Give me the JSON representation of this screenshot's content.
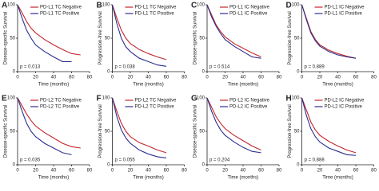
{
  "chart_data": [
    {
      "type": "line",
      "label": "A",
      "ylabel": "Disease-specific Survival",
      "xlabel": "Time (months)",
      "annotation": "p = 0.013",
      "x": [
        0,
        5,
        10,
        15,
        20,
        30,
        40,
        50,
        60,
        70
      ],
      "xlim": [
        0,
        80
      ],
      "xticks": [
        0,
        20,
        40,
        60,
        80
      ],
      "ylim": [
        0,
        100
      ],
      "yticks": [
        0,
        50,
        100
      ],
      "series": [
        {
          "name": "PD-L1 TC Negative",
          "color": "#c0262d",
          "values": [
            100,
            88,
            75,
            65,
            58,
            48,
            40,
            33,
            27,
            25
          ]
        },
        {
          "name": "PD-L1 TC Positive",
          "color": "#2b2f8f",
          "values": [
            100,
            80,
            62,
            50,
            40,
            30,
            22,
            15,
            15,
            null
          ]
        }
      ]
    },
    {
      "type": "line",
      "label": "B",
      "ylabel": "Progression-free Survival",
      "xlabel": "Time (months)",
      "annotation": "p = 0.038",
      "x": [
        0,
        5,
        10,
        15,
        20,
        30,
        40,
        50,
        60,
        70
      ],
      "xlim": [
        0,
        80
      ],
      "xticks": [
        0,
        20,
        40,
        60,
        80
      ],
      "ylim": [
        0,
        100
      ],
      "yticks": [
        0,
        50,
        100
      ],
      "series": [
        {
          "name": "PD-L1 TC Negative",
          "color": "#c0262d",
          "values": [
            100,
            80,
            62,
            50,
            42,
            33,
            27,
            22,
            18,
            null
          ]
        },
        {
          "name": "PD-L1 TC Positive",
          "color": "#2b2f8f",
          "values": [
            100,
            72,
            50,
            37,
            30,
            20,
            15,
            10,
            8,
            null
          ]
        }
      ]
    },
    {
      "type": "line",
      "label": "C",
      "ylabel": "Disease-specific Survival",
      "xlabel": "Time (months)",
      "annotation": "p = 0.514",
      "x": [
        0,
        5,
        10,
        15,
        20,
        30,
        40,
        50,
        60,
        70
      ],
      "xlim": [
        0,
        80
      ],
      "xticks": [
        0,
        20,
        40,
        60,
        80
      ],
      "ylim": [
        0,
        100
      ],
      "yticks": [
        0,
        50,
        100
      ],
      "series": [
        {
          "name": "PD-L1 IC Negative",
          "color": "#c0262d",
          "values": [
            100,
            85,
            70,
            60,
            52,
            42,
            35,
            28,
            22,
            null
          ]
        },
        {
          "name": "PD-L1 IC Positive",
          "color": "#2b2f8f",
          "values": [
            100,
            82,
            68,
            57,
            48,
            38,
            30,
            22,
            20,
            null
          ]
        }
      ]
    },
    {
      "type": "line",
      "label": "D",
      "ylabel": "Progression-free Survival",
      "xlabel": "Time (months)",
      "annotation": "p = 0.889",
      "x": [
        0,
        5,
        10,
        15,
        20,
        30,
        40,
        50,
        60,
        70
      ],
      "xlim": [
        0,
        80
      ],
      "xticks": [
        0,
        20,
        40,
        60,
        80
      ],
      "ylim": [
        0,
        100
      ],
      "yticks": [
        0,
        50,
        100
      ],
      "series": [
        {
          "name": "PD-L1 IC Negative",
          "color": "#c0262d",
          "values": [
            100,
            80,
            60,
            48,
            40,
            32,
            27,
            23,
            20,
            null
          ]
        },
        {
          "name": "PD-L1 IC Positive",
          "color": "#2b2f8f",
          "values": [
            100,
            78,
            58,
            46,
            38,
            30,
            25,
            22,
            20,
            null
          ]
        }
      ]
    },
    {
      "type": "line",
      "label": "E",
      "ylabel": "Disease-specific Survival",
      "xlabel": "Time (months)",
      "annotation": "p = 0.035",
      "x": [
        0,
        5,
        10,
        15,
        20,
        30,
        40,
        50,
        60,
        70
      ],
      "xlim": [
        0,
        80
      ],
      "xticks": [
        0,
        20,
        40,
        60,
        80
      ],
      "ylim": [
        0,
        100
      ],
      "yticks": [
        0,
        50,
        100
      ],
      "series": [
        {
          "name": "PD-L2 TC Negative",
          "color": "#c0262d",
          "values": [
            100,
            88,
            76,
            66,
            58,
            48,
            40,
            32,
            27,
            25
          ]
        },
        {
          "name": "PD-L2 TC Positive",
          "color": "#2b2f8f",
          "values": [
            100,
            80,
            62,
            50,
            42,
            32,
            25,
            18,
            15,
            null
          ]
        }
      ]
    },
    {
      "type": "line",
      "label": "F",
      "ylabel": "Progression-free Survival",
      "xlabel": "Time (months)",
      "annotation": "p = 0.055",
      "x": [
        0,
        5,
        10,
        15,
        20,
        30,
        40,
        50,
        60,
        70
      ],
      "xlim": [
        0,
        80
      ],
      "xticks": [
        0,
        20,
        40,
        60,
        80
      ],
      "ylim": [
        0,
        100
      ],
      "yticks": [
        0,
        50,
        100
      ],
      "series": [
        {
          "name": "PD-L2 TC Negative",
          "color": "#c0262d",
          "values": [
            100,
            80,
            62,
            50,
            42,
            33,
            28,
            22,
            18,
            null
          ]
        },
        {
          "name": "PD-L2 TC Positive",
          "color": "#2b2f8f",
          "values": [
            100,
            72,
            52,
            40,
            32,
            22,
            16,
            12,
            10,
            null
          ]
        }
      ]
    },
    {
      "type": "line",
      "label": "G",
      "ylabel": "Disease-specific Survival",
      "xlabel": "Time (months)",
      "annotation": "p = 0.204",
      "x": [
        0,
        5,
        10,
        15,
        20,
        30,
        40,
        50,
        60,
        70
      ],
      "xlim": [
        0,
        80
      ],
      "xticks": [
        0,
        20,
        40,
        60,
        80
      ],
      "ylim": [
        0,
        100
      ],
      "yticks": [
        0,
        50,
        100
      ],
      "series": [
        {
          "name": "PD-L2 IC Negative",
          "color": "#c0262d",
          "values": [
            100,
            86,
            72,
            62,
            54,
            44,
            36,
            28,
            22,
            null
          ]
        },
        {
          "name": "PD-L2 IC Positive",
          "color": "#2b2f8f",
          "values": [
            100,
            80,
            64,
            52,
            44,
            34,
            26,
            20,
            18,
            null
          ]
        }
      ]
    },
    {
      "type": "line",
      "label": "H",
      "ylabel": "Progression-free Survival",
      "xlabel": "Time (months)",
      "annotation": "p = 0.888",
      "x": [
        0,
        5,
        10,
        15,
        20,
        30,
        40,
        50,
        60,
        70
      ],
      "xlim": [
        0,
        80
      ],
      "xticks": [
        0,
        20,
        40,
        60,
        80
      ],
      "ylim": [
        0,
        100
      ],
      "yticks": [
        0,
        50,
        100
      ],
      "series": [
        {
          "name": "PD-L2 IC Negative",
          "color": "#c0262d",
          "values": [
            100,
            82,
            64,
            52,
            44,
            35,
            28,
            22,
            18,
            null
          ]
        },
        {
          "name": "PD-L2 IC Positive",
          "color": "#2b2f8f",
          "values": [
            100,
            74,
            54,
            42,
            34,
            25,
            20,
            15,
            14,
            null
          ]
        }
      ]
    }
  ]
}
